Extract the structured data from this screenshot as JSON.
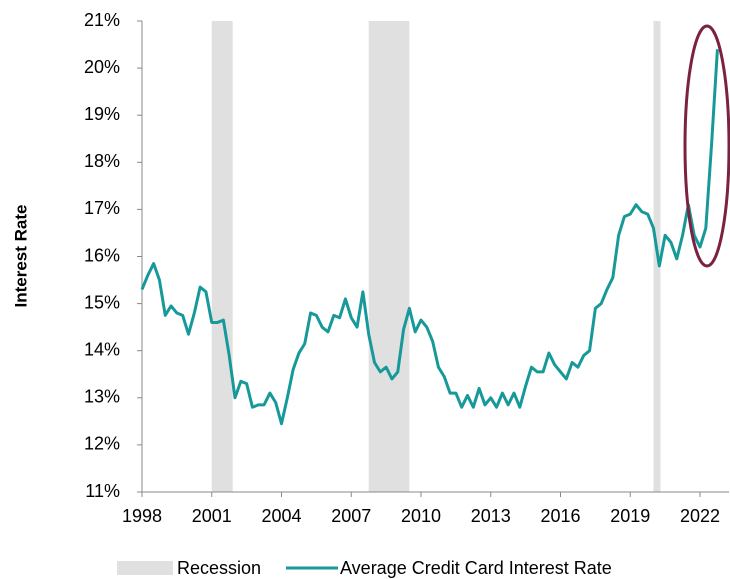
{
  "chart_data": {
    "type": "line",
    "y_label": "Interest Rate",
    "xlim": [
      1998,
      2023.25
    ],
    "xticks": [
      1998,
      2001,
      2004,
      2007,
      2010,
      2013,
      2016,
      2019,
      2022
    ],
    "ylim": [
      11,
      21
    ],
    "yticks": [
      {
        "value": 11,
        "label": "11%"
      },
      {
        "value": 12,
        "label": "12%"
      },
      {
        "value": 13,
        "label": "13%"
      },
      {
        "value": 14,
        "label": "14%"
      },
      {
        "value": 15,
        "label": "15%"
      },
      {
        "value": 16,
        "label": "16%"
      },
      {
        "value": 17,
        "label": "17%"
      },
      {
        "value": 18,
        "label": "18%"
      },
      {
        "value": 19,
        "label": "19%"
      },
      {
        "value": 20,
        "label": "20%"
      },
      {
        "value": 21,
        "label": "21%"
      }
    ],
    "recession": {
      "name": "Recession",
      "color": "#e0e0e0",
      "periods": [
        [
          2001,
          2001.9
        ],
        [
          2007.75,
          2009.5
        ],
        [
          2020,
          2020.3
        ]
      ]
    },
    "x": [
      1998,
      1998.25,
      1998.5,
      1998.75,
      1999,
      1999.25,
      1999.5,
      1999.75,
      2000,
      2000.25,
      2000.5,
      2000.75,
      2001,
      2001.25,
      2001.5,
      2001.75,
      2002,
      2002.25,
      2002.5,
      2002.75,
      2003,
      2003.25,
      2003.5,
      2003.75,
      2004,
      2004.25,
      2004.5,
      2004.75,
      2005,
      2005.25,
      2005.5,
      2005.75,
      2006,
      2006.25,
      2006.5,
      2006.75,
      2007,
      2007.25,
      2007.5,
      2007.75,
      2008,
      2008.25,
      2008.5,
      2008.75,
      2009,
      2009.25,
      2009.5,
      2009.75,
      2010,
      2010.25,
      2010.5,
      2010.75,
      2011,
      2011.25,
      2011.5,
      2011.75,
      2012,
      2012.25,
      2012.5,
      2012.75,
      2013,
      2013.25,
      2013.5,
      2013.75,
      2014,
      2014.25,
      2014.5,
      2014.75,
      2015,
      2015.25,
      2015.5,
      2015.75,
      2016,
      2016.25,
      2016.5,
      2016.75,
      2017,
      2017.25,
      2017.5,
      2017.75,
      2018,
      2018.25,
      2018.5,
      2018.75,
      2019,
      2019.25,
      2019.5,
      2019.75,
      2020,
      2020.25,
      2020.5,
      2020.75,
      2021,
      2021.25,
      2021.5,
      2021.75,
      2022,
      2022.25,
      2022.5,
      2022.75
    ],
    "series": [
      {
        "name": "Average Credit Card Interest Rate",
        "color": "#17999a",
        "values": [
          15.3,
          15.6,
          15.85,
          15.5,
          14.75,
          14.95,
          14.8,
          14.75,
          14.35,
          14.8,
          15.35,
          15.25,
          14.6,
          14.6,
          14.65,
          13.9,
          13.0,
          13.35,
          13.3,
          12.8,
          12.85,
          12.85,
          13.1,
          12.9,
          12.45,
          13.0,
          13.6,
          13.95,
          14.15,
          14.8,
          14.75,
          14.5,
          14.4,
          14.75,
          14.7,
          15.1,
          14.7,
          14.5,
          15.25,
          14.35,
          13.75,
          13.55,
          13.65,
          13.4,
          13.55,
          14.45,
          14.9,
          14.4,
          14.65,
          14.5,
          14.2,
          13.65,
          13.45,
          13.1,
          13.1,
          12.8,
          13.05,
          12.8,
          13.2,
          12.85,
          13.0,
          12.8,
          13.1,
          12.85,
          13.1,
          12.8,
          13.25,
          13.65,
          13.55,
          13.55,
          13.95,
          13.7,
          13.55,
          13.4,
          13.75,
          13.65,
          13.9,
          14.0,
          14.9,
          15.0,
          15.3,
          15.55,
          16.45,
          16.85,
          16.9,
          17.1,
          16.95,
          16.9,
          16.6,
          15.8,
          16.45,
          16.3,
          15.95,
          16.45,
          17.1,
          16.45,
          16.2,
          16.6,
          18.4,
          20.4
        ]
      }
    ]
  }
}
